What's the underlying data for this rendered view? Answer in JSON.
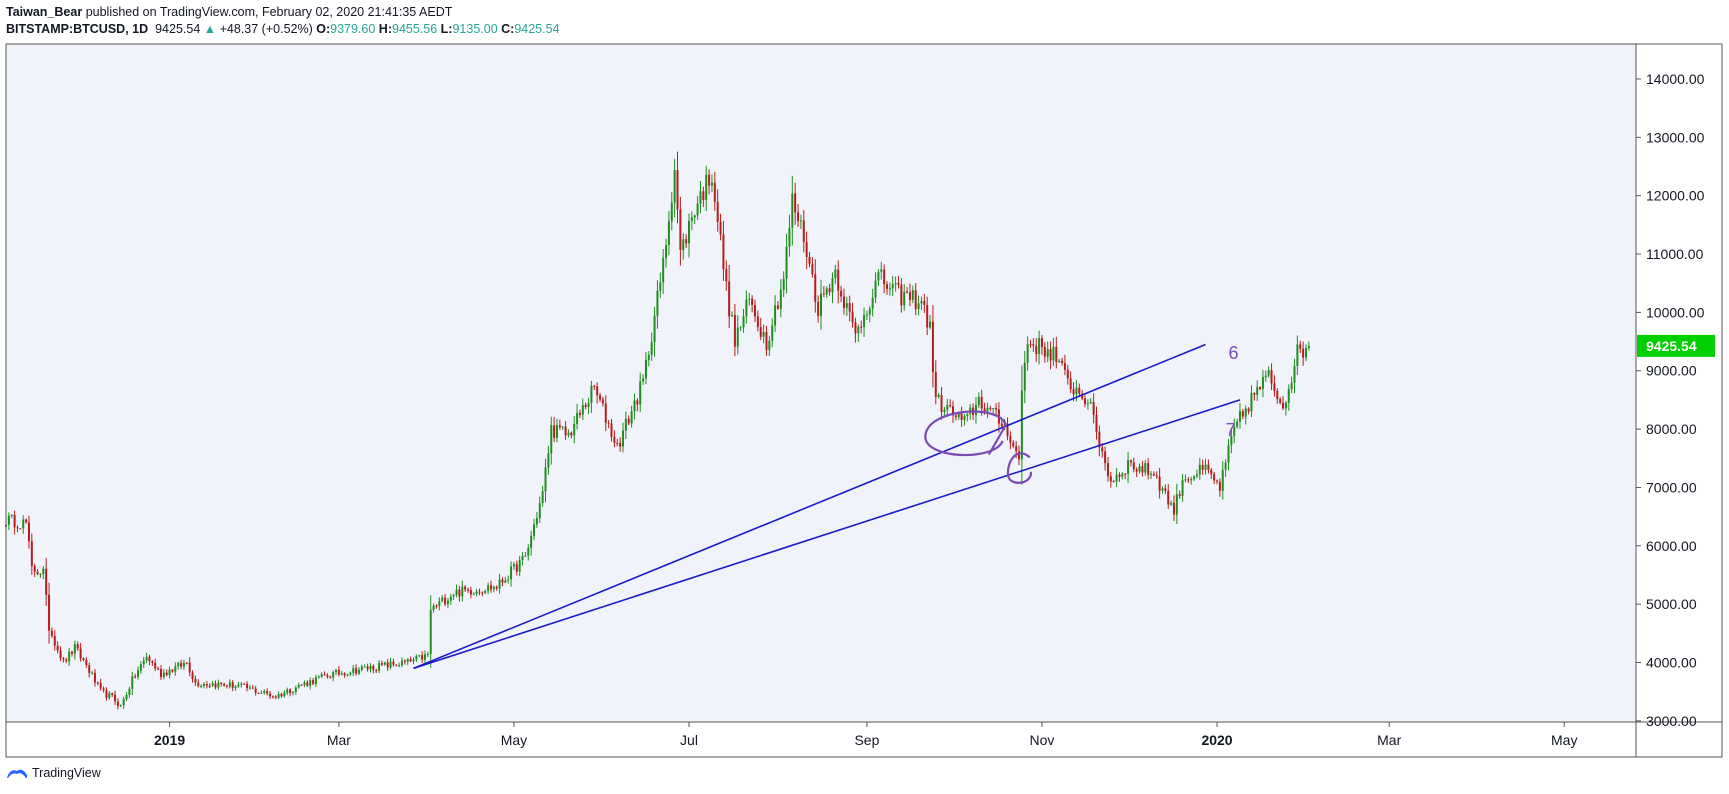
{
  "header": {
    "author": "Taiwan_Bear",
    "published_text": "published on TradingView.com, February 02, 2020 21:41:35 AEDT",
    "symbol": "BITSTAMP:BTCUSD, 1D",
    "last": "9425.54",
    "change": "+48.37 (+0.52%)",
    "o_label": "O:",
    "o": "9379.60",
    "h_label": "H:",
    "h": "9455.56",
    "l_label": "L:",
    "l": "9135.00",
    "c_label": "C:",
    "c": "9425.54"
  },
  "footer": {
    "brand": "TradingView"
  },
  "colors": {
    "background": "#f0f3fa",
    "up": "#1e8e1e",
    "down": "#b71c1c",
    "trendline": "#1a1acc",
    "annotation": "#7a4bb3",
    "price_label_bg": "#00d000"
  },
  "chart_data": {
    "type": "candlestick",
    "x_tick_labels": [
      "2019",
      "Mar",
      "May",
      "Jul",
      "Sep",
      "Nov",
      "2020",
      "Mar",
      "May"
    ],
    "x_tick_bold": [
      true,
      false,
      false,
      false,
      false,
      false,
      true,
      false,
      false
    ],
    "y_tick_labels": [
      "14000.00",
      "13000.00",
      "12000.00",
      "11000.00",
      "10000.00",
      "9000.00",
      "8000.00",
      "7000.00",
      "6000.00",
      "5000.00",
      "4000.00",
      "3000.00"
    ],
    "y_ticks": [
      14000,
      13000,
      12000,
      11000,
      10000,
      9000,
      8000,
      7000,
      6000,
      5000,
      4000,
      3000
    ],
    "ylim": [
      2980,
      14600
    ],
    "x_range": [
      "2018-11-05",
      "2020-05-26"
    ],
    "current_price_label": "9425.54",
    "current_price": 9425.54,
    "close_path": [
      [
        "2018-11-05",
        6450
      ],
      [
        "2018-11-12",
        6380
      ],
      [
        "2018-11-14",
        5600
      ],
      [
        "2018-11-18",
        5550
      ],
      [
        "2018-11-20",
        4600
      ],
      [
        "2018-11-25",
        4000
      ],
      [
        "2018-11-29",
        4250
      ],
      [
        "2018-12-03",
        3950
      ],
      [
        "2018-12-08",
        3500
      ],
      [
        "2018-12-12",
        3400
      ],
      [
        "2018-12-15",
        3250
      ],
      [
        "2018-12-19",
        3700
      ],
      [
        "2018-12-24",
        4100
      ],
      [
        "2018-12-29",
        3800
      ],
      [
        "2019-01-07",
        4000
      ],
      [
        "2019-01-10",
        3650
      ],
      [
        "2019-01-25",
        3600
      ],
      [
        "2019-02-07",
        3420
      ],
      [
        "2019-02-15",
        3600
      ],
      [
        "2019-02-25",
        3780
      ],
      [
        "2019-03-10",
        3900
      ],
      [
        "2019-03-25",
        4000
      ],
      [
        "2019-04-01",
        4120
      ],
      [
        "2019-04-02",
        4900
      ],
      [
        "2019-04-10",
        5200
      ],
      [
        "2019-04-25",
        5300
      ],
      [
        "2019-05-05",
        5800
      ],
      [
        "2019-05-11",
        6900
      ],
      [
        "2019-05-14",
        8000
      ],
      [
        "2019-05-20",
        7900
      ],
      [
        "2019-05-29",
        8700
      ],
      [
        "2019-06-06",
        7700
      ],
      [
        "2019-06-15",
        8800
      ],
      [
        "2019-06-22",
        10800
      ],
      [
        "2019-06-26",
        12500
      ],
      [
        "2019-06-28",
        11000
      ],
      [
        "2019-07-03",
        11800
      ],
      [
        "2019-07-09",
        12400
      ],
      [
        "2019-07-14",
        10400
      ],
      [
        "2019-07-17",
        9500
      ],
      [
        "2019-07-22",
        10200
      ],
      [
        "2019-07-28",
        9500
      ],
      [
        "2019-08-03",
        10600
      ],
      [
        "2019-08-06",
        11900
      ],
      [
        "2019-08-10",
        11300
      ],
      [
        "2019-08-15",
        10100
      ],
      [
        "2019-08-21",
        10700
      ],
      [
        "2019-08-28",
        9600
      ],
      [
        "2019-09-05",
        10600
      ],
      [
        "2019-09-12",
        10300
      ],
      [
        "2019-09-20",
        10200
      ],
      [
        "2019-09-23",
        9700
      ],
      [
        "2019-09-25",
        8500
      ],
      [
        "2019-10-05",
        8100
      ],
      [
        "2019-10-10",
        8500
      ],
      [
        "2019-10-20",
        8000
      ],
      [
        "2019-10-24",
        7450
      ],
      [
        "2019-10-25",
        8700
      ],
      [
        "2019-10-27",
        9500
      ],
      [
        "2019-11-05",
        9300
      ],
      [
        "2019-11-10",
        8800
      ],
      [
        "2019-11-17",
        8500
      ],
      [
        "2019-11-22",
        7600
      ],
      [
        "2019-11-25",
        7100
      ],
      [
        "2019-12-01",
        7400
      ],
      [
        "2019-12-10",
        7250
      ],
      [
        "2019-12-17",
        6600
      ],
      [
        "2019-12-20",
        7150
      ],
      [
        "2019-12-28",
        7300
      ],
      [
        "2020-01-02",
        7000
      ],
      [
        "2020-01-07",
        8000
      ],
      [
        "2020-01-14",
        8600
      ],
      [
        "2020-01-19",
        8900
      ],
      [
        "2020-01-24",
        8400
      ],
      [
        "2020-01-29",
        9300
      ],
      [
        "2020-02-02",
        9425.54
      ]
    ],
    "trendlines": [
      {
        "from": [
          "2019-03-27",
          3900
        ],
        "to": [
          "2019-12-28",
          9450
        ],
        "label": "6"
      },
      {
        "from": [
          "2019-03-27",
          3900
        ],
        "to": [
          "2020-01-09",
          8500
        ],
        "label": "7"
      }
    ],
    "annotations": [
      "7",
      "6"
    ]
  }
}
